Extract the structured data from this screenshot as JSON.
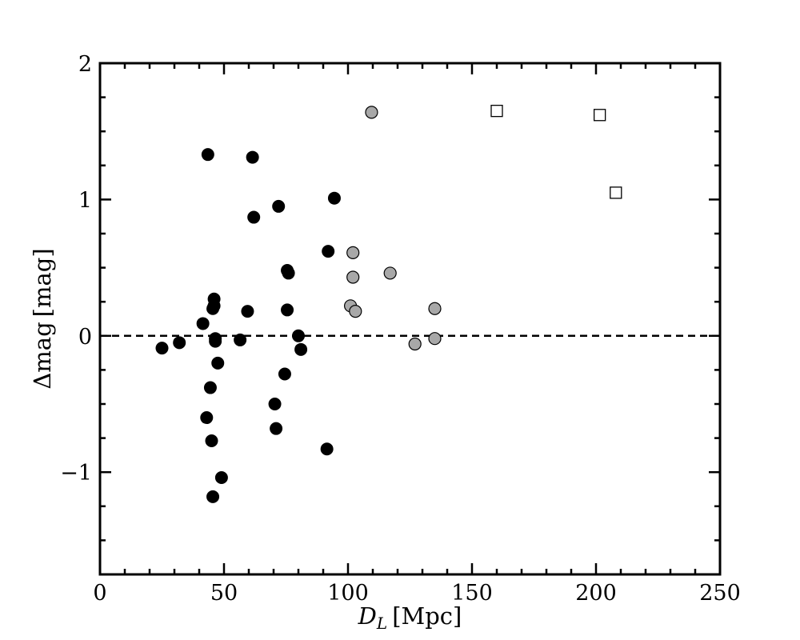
{
  "chart_data": {
    "type": "scatter",
    "title": "",
    "xlabel": {
      "main": "D",
      "sub": "L",
      "unit": "[Mpc]"
    },
    "ylabel": {
      "main": "Δmag",
      "unit": "[mag]"
    },
    "xlim": [
      0,
      250
    ],
    "ylim": [
      -1.75,
      2
    ],
    "x_ticks": [
      0,
      50,
      100,
      150,
      200,
      250
    ],
    "x_tick_labels": [
      "0",
      "50",
      "100",
      "150",
      "200",
      "250"
    ],
    "y_ticks": [
      -1,
      0,
      1,
      2
    ],
    "y_tick_labels": [
      "−1",
      "0",
      "1",
      "2"
    ],
    "x_minor_step": 10,
    "y_minor_step": 0.25,
    "reference_line": {
      "y": 0,
      "style": "dashed"
    },
    "grid": false,
    "legend": "none",
    "series": [
      {
        "marker": "filled-circle",
        "color": "#000000",
        "points": [
          [
            25,
            -0.09
          ],
          [
            32,
            -0.05
          ],
          [
            41.5,
            0.09
          ],
          [
            43.5,
            1.33
          ],
          [
            43,
            -0.6
          ],
          [
            44.5,
            -0.38
          ],
          [
            45,
            -0.77
          ],
          [
            45.5,
            -1.18
          ],
          [
            45.5,
            0.2
          ],
          [
            46,
            0.27
          ],
          [
            46,
            0.22
          ],
          [
            46.5,
            -0.02
          ],
          [
            46.5,
            -0.04
          ],
          [
            47.5,
            -0.2
          ],
          [
            49,
            -1.04
          ],
          [
            56.5,
            -0.03
          ],
          [
            59.5,
            0.18
          ],
          [
            61.5,
            1.31
          ],
          [
            62,
            0.87
          ],
          [
            70.5,
            -0.5
          ],
          [
            71,
            -0.68
          ],
          [
            72,
            0.95
          ],
          [
            74.5,
            -0.28
          ],
          [
            75.5,
            0.48
          ],
          [
            76,
            0.46
          ],
          [
            75.5,
            0.19
          ],
          [
            80,
            0.0
          ],
          [
            81,
            -0.1
          ],
          [
            91.5,
            -0.83
          ],
          [
            92,
            0.62
          ],
          [
            94.5,
            1.01
          ]
        ]
      },
      {
        "marker": "gray-circle",
        "color": "#a8a8a8",
        "points": [
          [
            109.5,
            1.64
          ],
          [
            102,
            0.61
          ],
          [
            102,
            0.43
          ],
          [
            101,
            0.22
          ],
          [
            103,
            0.18
          ],
          [
            117,
            0.46
          ],
          [
            127,
            -0.06
          ],
          [
            135,
            0.2
          ],
          [
            135,
            -0.02
          ]
        ]
      },
      {
        "marker": "open-square",
        "color": "#000000",
        "points": [
          [
            160,
            1.65
          ],
          [
            201.5,
            1.62
          ],
          [
            208,
            1.05
          ]
        ]
      }
    ]
  }
}
